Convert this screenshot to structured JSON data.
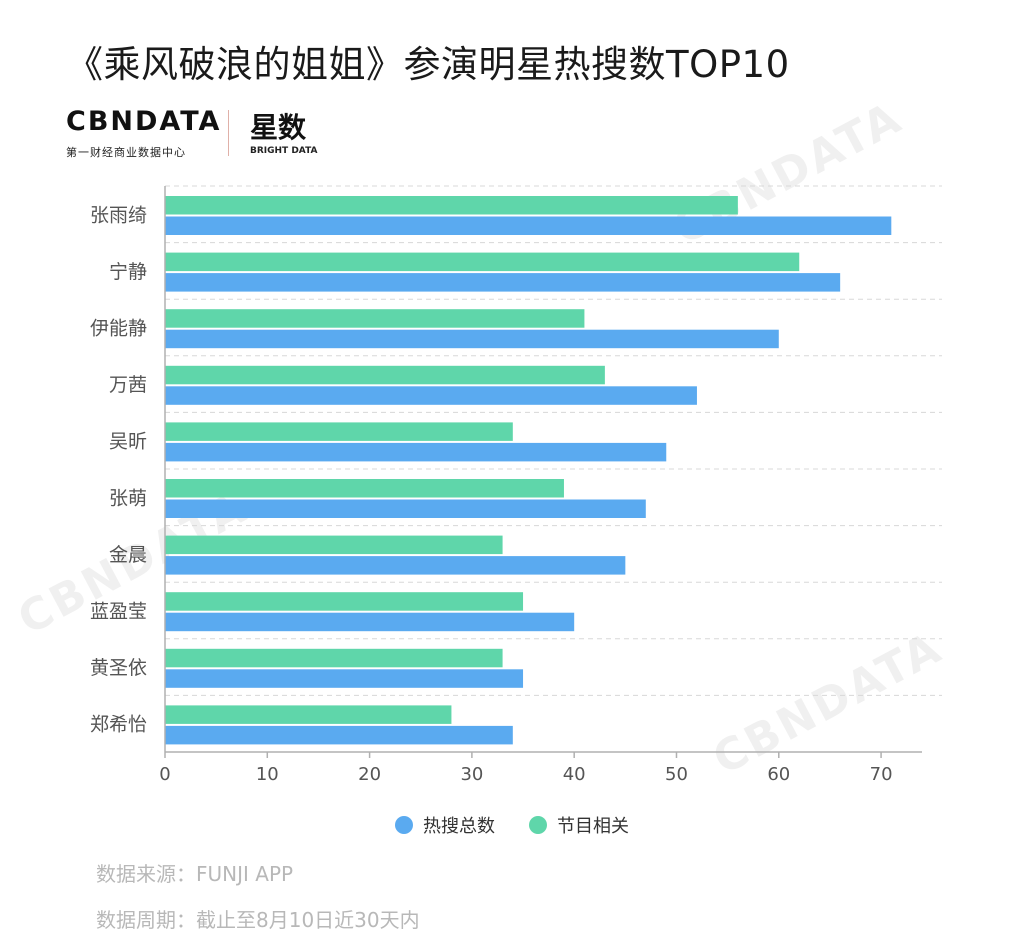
{
  "header": {
    "title": "《乘风破浪的姐姐》参演明星热搜数TOP10"
  },
  "logo": {
    "main": "CBNDATA",
    "sub": "第一财经商业数据中心",
    "brand": "星数",
    "brand_sub": "BRIGHT DATA"
  },
  "watermark": {
    "text": "CBNDATA",
    "sub": "第一财经商业数据中心"
  },
  "colors": {
    "total": "#5aaaf0",
    "program": "#5fd6aa",
    "grid": "#d8d8d8",
    "axis": "#b0b0b0",
    "tick_text": "#555555"
  },
  "chart_data": {
    "type": "bar",
    "orientation": "horizontal",
    "categories": [
      "张雨绮",
      "宁静",
      "伊能静",
      "万茜",
      "吴昕",
      "张萌",
      "金晨",
      "蓝盈莹",
      "黄圣依",
      "郑希怡"
    ],
    "series": [
      {
        "name": "节目相关",
        "values": [
          56,
          62,
          41,
          43,
          34,
          39,
          33,
          35,
          33,
          28
        ]
      },
      {
        "name": "热搜总数",
        "values": [
          71,
          66,
          60,
          52,
          49,
          47,
          45,
          40,
          35,
          34
        ]
      }
    ],
    "xlim": [
      0,
      74
    ],
    "xticks": [
      0,
      10,
      20,
      30,
      40,
      50,
      60,
      70
    ],
    "grid": true,
    "legend": "bottom-center"
  },
  "legend": {
    "items": [
      {
        "label": "热搜总数"
      },
      {
        "label": "节目相关"
      }
    ]
  },
  "footer": {
    "source": "数据来源：FUNJI APP",
    "period": "数据周期：截止至8月10日近30天内"
  }
}
